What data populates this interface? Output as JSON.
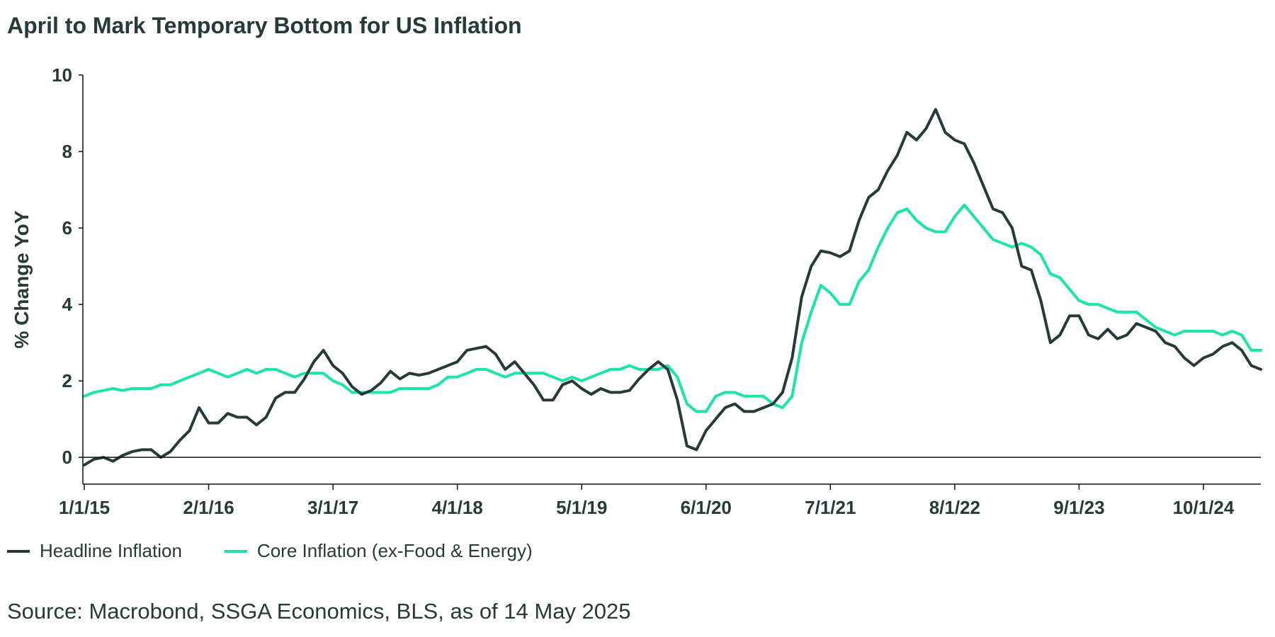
{
  "title": "April to Mark Temporary Bottom for US Inflation",
  "source": "Source: Macrobond, SSGA Economics, BLS, as of 14 May 2025",
  "colors": {
    "headline": "#263b37",
    "core": "#1de5a9",
    "axis": "#111111",
    "text": "#263b37"
  },
  "legend": [
    {
      "label": "Headline Inflation",
      "color": "#263b37"
    },
    {
      "label": "Core Inflation (ex-Food & Energy)",
      "color": "#1de5a9"
    }
  ],
  "chart_data": {
    "type": "line",
    "title": "April to Mark Temporary Bottom for US Inflation",
    "xlabel": "",
    "ylabel": "% Change YoY",
    "ylim": [
      -0.7,
      10
    ],
    "yticks": [
      0,
      2,
      4,
      6,
      8,
      10
    ],
    "xticks": [
      "1/1/15",
      "2/1/16",
      "3/1/17",
      "4/1/18",
      "5/1/19",
      "6/1/20",
      "7/1/21",
      "8/1/22",
      "9/1/23",
      "10/1/24"
    ],
    "x_start": "1/1/15",
    "x_end": "4/1/25",
    "frequency": "monthly",
    "grid": false,
    "legend_position": "bottom-left",
    "series": [
      {
        "name": "Headline Inflation",
        "values": [
          -0.2,
          -0.05,
          0.0,
          -0.1,
          0.05,
          0.15,
          0.2,
          0.2,
          0.0,
          0.15,
          0.45,
          0.7,
          1.3,
          0.9,
          0.9,
          1.15,
          1.05,
          1.05,
          0.85,
          1.05,
          1.55,
          1.7,
          1.7,
          2.05,
          2.5,
          2.8,
          2.4,
          2.2,
          1.85,
          1.65,
          1.75,
          1.95,
          2.25,
          2.05,
          2.2,
          2.15,
          2.2,
          2.3,
          2.4,
          2.5,
          2.8,
          2.85,
          2.9,
          2.7,
          2.3,
          2.5,
          2.2,
          1.9,
          1.5,
          1.5,
          1.9,
          2.0,
          1.8,
          1.65,
          1.8,
          1.7,
          1.7,
          1.75,
          2.05,
          2.3,
          2.5,
          2.3,
          1.5,
          0.3,
          0.2,
          0.7,
          1.0,
          1.3,
          1.4,
          1.2,
          1.2,
          1.3,
          1.4,
          1.7,
          2.6,
          4.2,
          5.0,
          5.4,
          5.35,
          5.25,
          5.4,
          6.2,
          6.8,
          7.0,
          7.5,
          7.9,
          8.5,
          8.3,
          8.6,
          9.1,
          8.5,
          8.3,
          8.2,
          7.7,
          7.1,
          6.5,
          6.4,
          6.0,
          5.0,
          4.9,
          4.1,
          3.0,
          3.2,
          3.7,
          3.7,
          3.2,
          3.1,
          3.35,
          3.1,
          3.2,
          3.5,
          3.4,
          3.3,
          3.0,
          2.9,
          2.6,
          2.4,
          2.6,
          2.7,
          2.9,
          3.0,
          2.8,
          2.4,
          2.3
        ]
      },
      {
        "name": "Core Inflation (ex-Food & Energy)",
        "values": [
          1.6,
          1.7,
          1.75,
          1.8,
          1.75,
          1.8,
          1.8,
          1.8,
          1.9,
          1.9,
          2.0,
          2.1,
          2.2,
          2.3,
          2.2,
          2.1,
          2.2,
          2.3,
          2.2,
          2.3,
          2.3,
          2.2,
          2.1,
          2.2,
          2.2,
          2.2,
          2.0,
          1.9,
          1.7,
          1.7,
          1.7,
          1.7,
          1.7,
          1.8,
          1.8,
          1.8,
          1.8,
          1.9,
          2.1,
          2.1,
          2.2,
          2.3,
          2.3,
          2.2,
          2.1,
          2.2,
          2.2,
          2.2,
          2.2,
          2.1,
          2.0,
          2.1,
          2.0,
          2.1,
          2.2,
          2.3,
          2.3,
          2.4,
          2.3,
          2.3,
          2.3,
          2.4,
          2.1,
          1.4,
          1.2,
          1.2,
          1.6,
          1.7,
          1.7,
          1.6,
          1.6,
          1.6,
          1.4,
          1.3,
          1.6,
          3.0,
          3.8,
          4.5,
          4.3,
          4.0,
          4.0,
          4.6,
          4.9,
          5.5,
          6.0,
          6.4,
          6.5,
          6.2,
          6.0,
          5.9,
          5.9,
          6.3,
          6.6,
          6.3,
          6.0,
          5.7,
          5.6,
          5.5,
          5.6,
          5.5,
          5.3,
          4.8,
          4.7,
          4.4,
          4.1,
          4.0,
          4.0,
          3.9,
          3.8,
          3.8,
          3.8,
          3.6,
          3.4,
          3.3,
          3.2,
          3.3,
          3.3,
          3.3,
          3.3,
          3.2,
          3.3,
          3.2,
          2.8,
          2.8
        ]
      }
    ]
  }
}
